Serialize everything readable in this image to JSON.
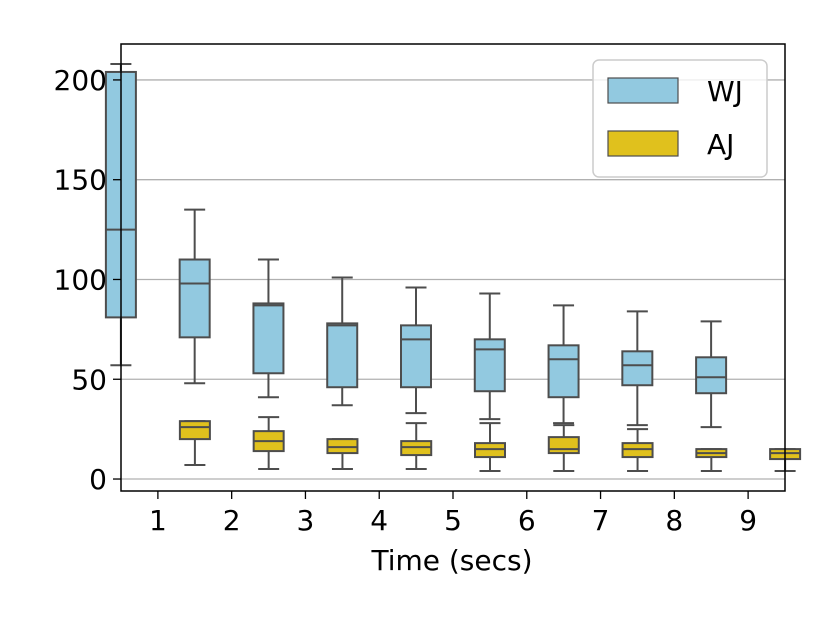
{
  "chart_data": {
    "type": "boxplot",
    "title": "",
    "xlabel": "Time (secs)",
    "ylabel": "",
    "categories": [
      "1",
      "2",
      "3",
      "4",
      "5",
      "6",
      "7",
      "8",
      "9"
    ],
    "ylim": [
      -6,
      218
    ],
    "yticks": [
      0,
      50,
      100,
      150,
      200
    ],
    "grid": "horizontal",
    "legend_position": "top-right",
    "series": [
      {
        "name": "WJ",
        "color": "#92c9e0",
        "boxes": [
          {
            "whislo": 57,
            "q1": 81,
            "med": 125,
            "q3": 204,
            "whishi": 208
          },
          {
            "whislo": 48,
            "q1": 71,
            "med": 98,
            "q3": 110,
            "whishi": 135
          },
          {
            "whislo": 41,
            "q1": 53,
            "med": 87,
            "q3": 88,
            "whishi": 110
          },
          {
            "whislo": 37,
            "q1": 46,
            "med": 77,
            "q3": 78,
            "whishi": 101
          },
          {
            "whislo": 33,
            "q1": 46,
            "med": 70,
            "q3": 77,
            "whishi": 96
          },
          {
            "whislo": 30,
            "q1": 44,
            "med": 65,
            "q3": 70,
            "whishi": 93
          },
          {
            "whislo": 28,
            "q1": 41,
            "med": 60,
            "q3": 67,
            "whishi": 87
          },
          {
            "whislo": 27,
            "q1": 47,
            "med": 57,
            "q3": 64,
            "whishi": 84
          },
          {
            "whislo": 26,
            "q1": 43,
            "med": 51,
            "q3": 61,
            "whishi": 79
          }
        ]
      },
      {
        "name": "AJ",
        "color": "#e0c11d",
        "boxes": [
          {
            "whislo": 7,
            "q1": 20,
            "med": 26,
            "q3": 29,
            "whishi": 29
          },
          {
            "whislo": 5,
            "q1": 14,
            "med": 19,
            "q3": 24,
            "whishi": 31
          },
          {
            "whislo": 5,
            "q1": 13,
            "med": 16,
            "q3": 20,
            "whishi": 20
          },
          {
            "whislo": 5,
            "q1": 12,
            "med": 16,
            "q3": 19,
            "whishi": 28
          },
          {
            "whislo": 4,
            "q1": 11,
            "med": 15,
            "q3": 18,
            "whishi": 28
          },
          {
            "whislo": 4,
            "q1": 13,
            "med": 15,
            "q3": 21,
            "whishi": 27
          },
          {
            "whislo": 4,
            "q1": 11,
            "med": 15,
            "q3": 18,
            "whishi": 25
          },
          {
            "whislo": 4,
            "q1": 11,
            "med": 13,
            "q3": 15,
            "whishi": 15
          },
          {
            "whislo": 4,
            "q1": 10,
            "med": 13,
            "q3": 15,
            "whishi": 15
          }
        ]
      }
    ],
    "style": {
      "edge_color": "#4d4d4d",
      "grid_color": "#b0b0b0",
      "axis_color": "#000000"
    }
  }
}
